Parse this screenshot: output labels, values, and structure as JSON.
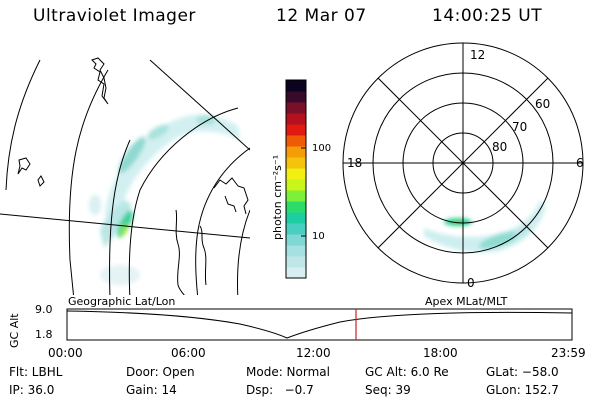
{
  "header": {
    "instrument": "Ultraviolet Imager",
    "date": "12 Mar 07",
    "time": "14:00:25 UT"
  },
  "colorbar": {
    "label": "photon cm⁻²s⁻¹",
    "ticks": [
      "100",
      "10"
    ],
    "colors": [
      "#d8eff2",
      "#bfe7ea",
      "#a6e0e0",
      "#7fd8d3",
      "#49cfc2",
      "#1dcfa0",
      "#2bdc6a",
      "#7ff03a",
      "#c9f51a",
      "#f2ef12",
      "#f5c20c",
      "#f59c08",
      "#ef5a07",
      "#e01a10",
      "#b5101e",
      "#7a0f2a",
      "#3a0a2b",
      "#0b0420"
    ]
  },
  "polar": {
    "mlt_labels": [
      "12",
      "18",
      "6",
      "0"
    ],
    "mlat_labels": [
      "60",
      "70",
      "80"
    ]
  },
  "timeline": {
    "left_title": "Geographic Lat/Lon",
    "right_title": "Apex MLat/MLT",
    "axis_label": "GC Alt",
    "y_top": "9.0",
    "y_bottom": "1.8",
    "x_ticks": [
      "00:00",
      "06:00",
      "12:00",
      "18:00",
      "23:59"
    ],
    "marker_color": "#cc2222"
  },
  "info": {
    "row1": {
      "flt": "Flt: LBHL",
      "door": "Door: Open",
      "mode": "Mode: Normal",
      "gcalt": "GC Alt: 6.0 Re",
      "glat": "GLat: −58.0"
    },
    "row2": {
      "ip": "IP: 36.0",
      "gain": "Gain: 14",
      "dsp": "Dsp:   −0.7",
      "seq": "Seq: 39",
      "glon": "GLon: 152.7"
    }
  }
}
